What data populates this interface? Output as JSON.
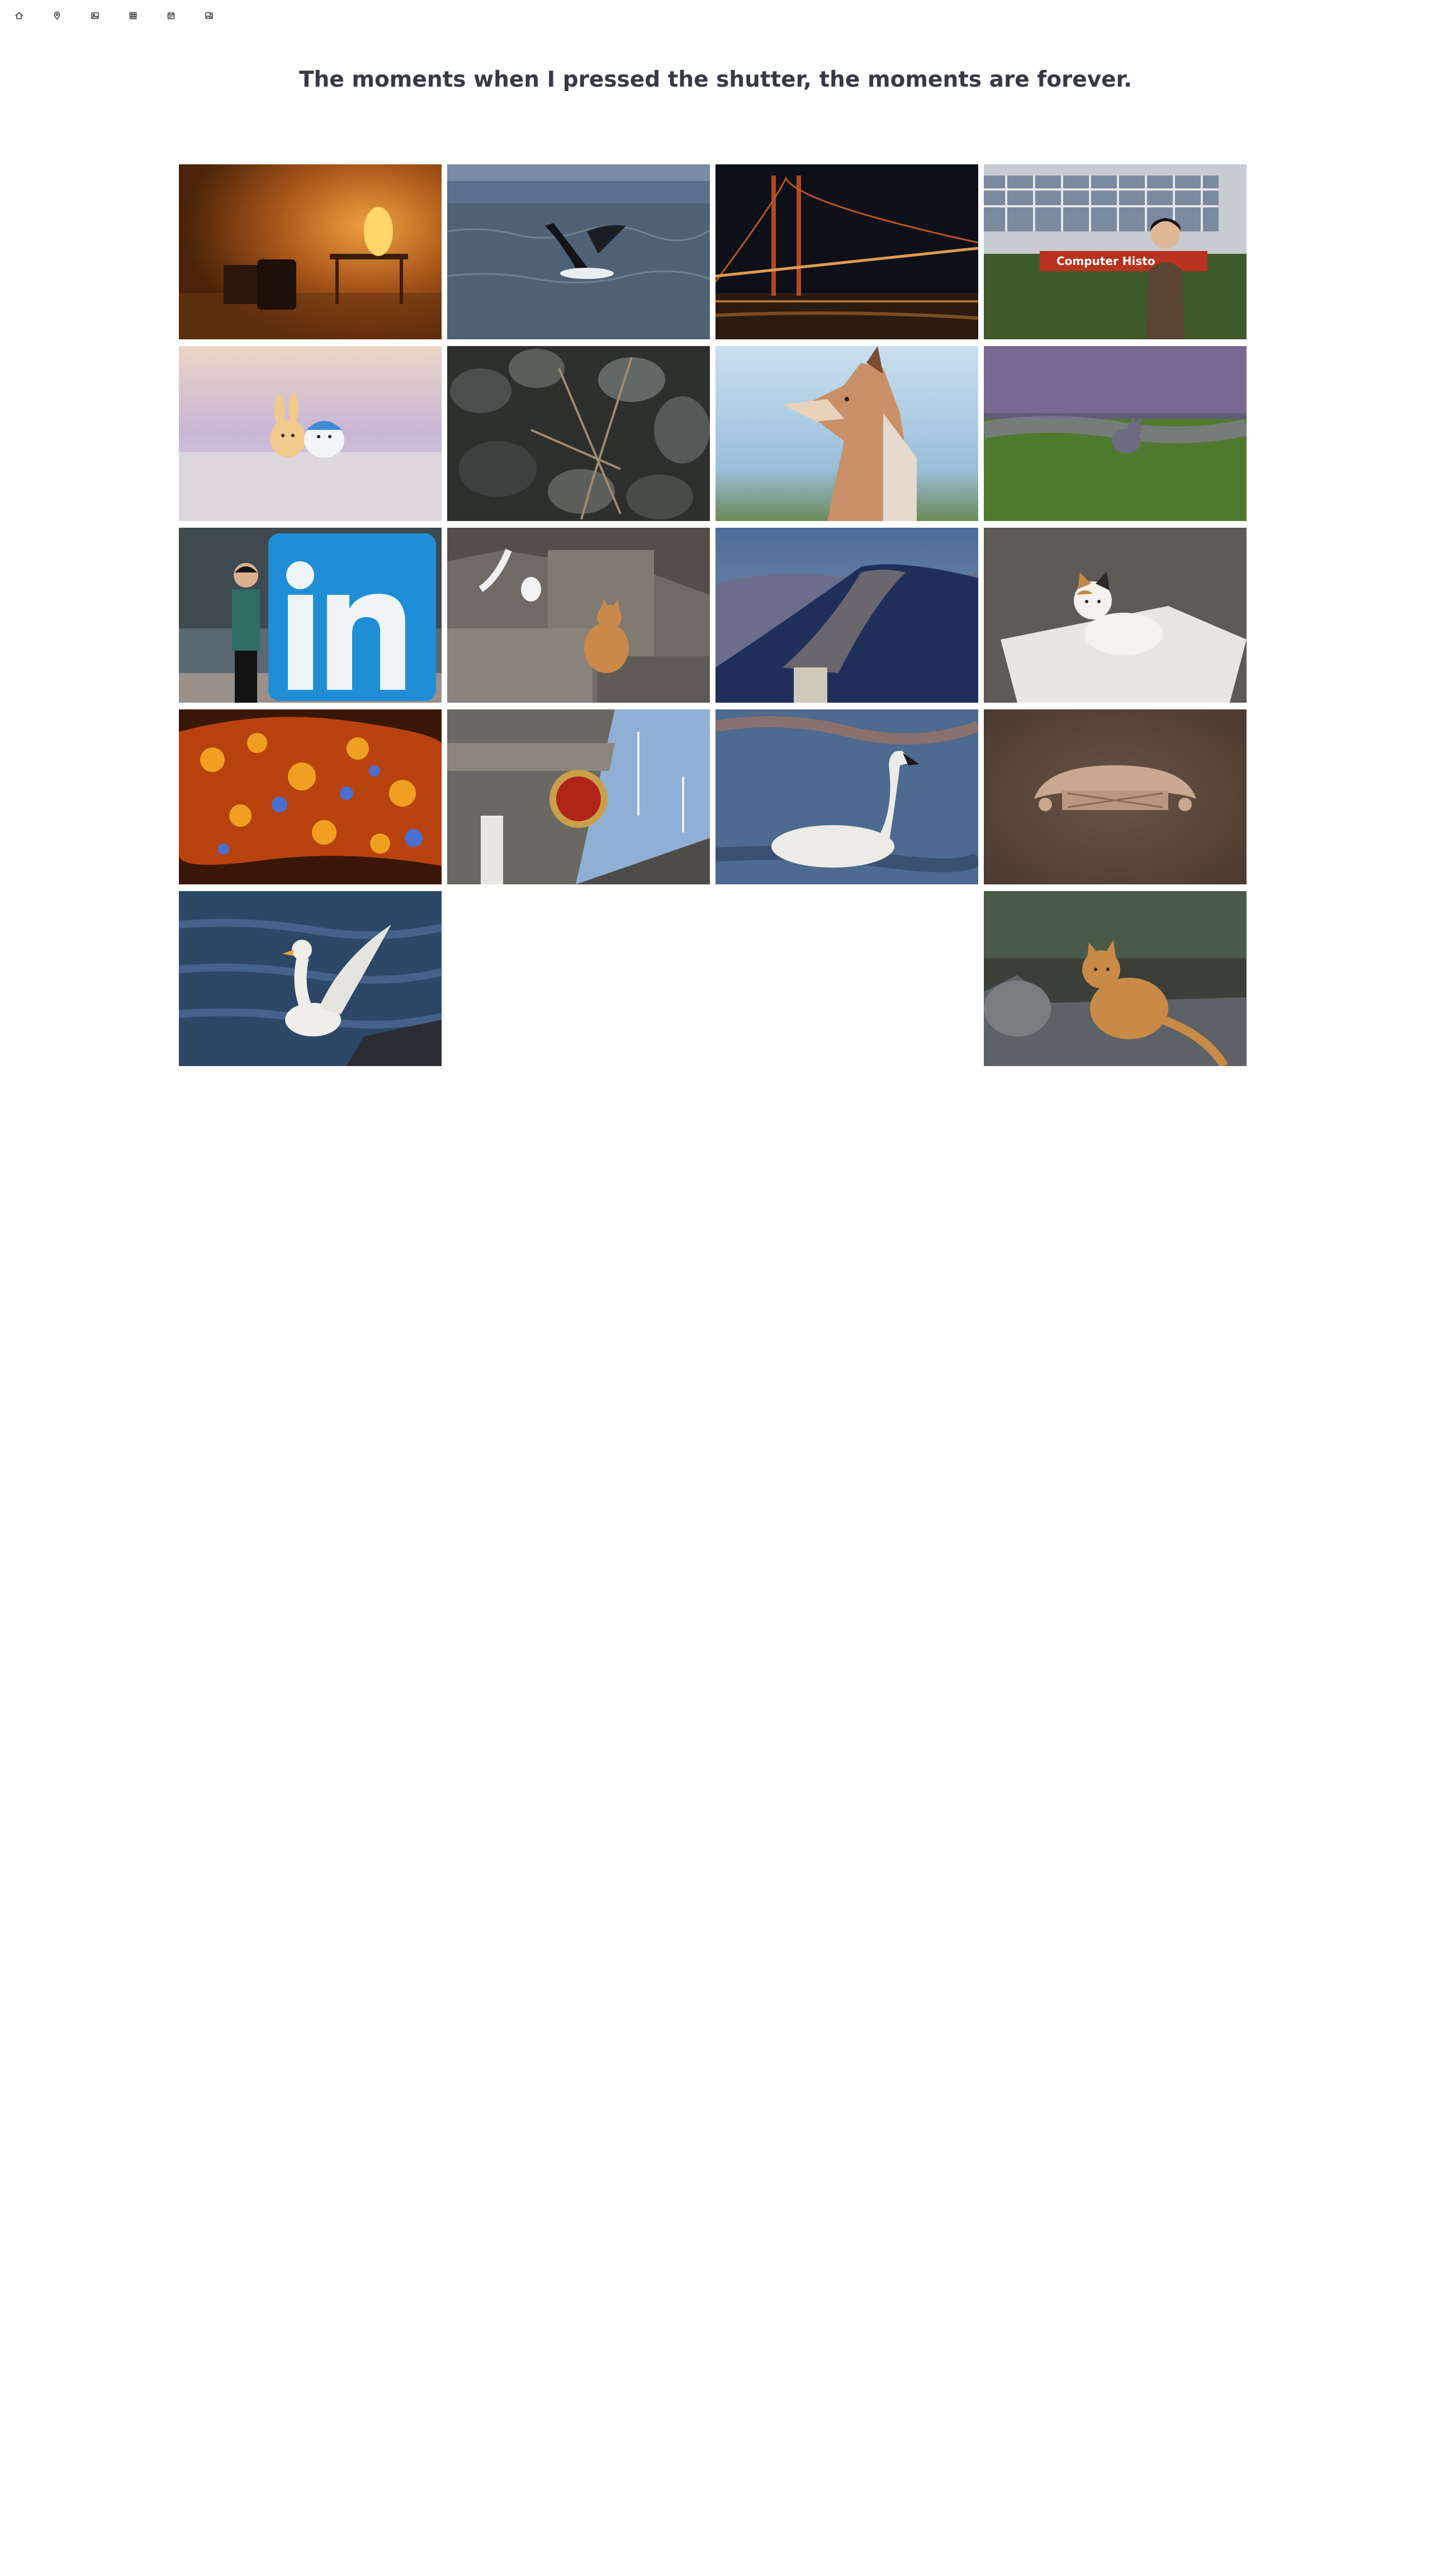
{
  "nav": {
    "items": [
      {
        "name": "home-icon",
        "label": "Home"
      },
      {
        "name": "location-icon",
        "label": "Places"
      },
      {
        "name": "image-icon",
        "label": "Photos"
      },
      {
        "name": "grid-icon",
        "label": "Gallery"
      },
      {
        "name": "calendar-icon",
        "label": "Timeline"
      },
      {
        "name": "picture-icon",
        "label": "Album"
      }
    ]
  },
  "header": {
    "title": "The moments when I pressed the shutter, the moments are forever."
  },
  "gallery": {
    "photos": [
      {
        "name": "photo-lamp-room",
        "alt": "lamp room",
        "sign_text": ""
      },
      {
        "name": "photo-whale-breach",
        "alt": "whale breaching",
        "sign_text": ""
      },
      {
        "name": "photo-golden-gate-night",
        "alt": "bridge at night",
        "sign_text": ""
      },
      {
        "name": "photo-computer-history-museum",
        "alt": "museum portrait",
        "sign_text": "Computer  Histo"
      },
      {
        "name": "photo-plush-toys",
        "alt": "plush toys",
        "sign_text": ""
      },
      {
        "name": "photo-rocks-branches",
        "alt": "rocks",
        "sign_text": ""
      },
      {
        "name": "photo-fox",
        "alt": "fox",
        "sign_text": ""
      },
      {
        "name": "photo-cat-in-grass",
        "alt": "cat in grass",
        "sign_text": ""
      },
      {
        "name": "photo-linkedin-sign",
        "alt": "linkedin sign",
        "sign_text": ""
      },
      {
        "name": "photo-cat-on-stone",
        "alt": "cat on stone",
        "sign_text": ""
      },
      {
        "name": "photo-mountain-landscape",
        "alt": "mountain",
        "sign_text": ""
      },
      {
        "name": "photo-calico-kitten",
        "alt": "kitten",
        "sign_text": ""
      },
      {
        "name": "photo-painted-ceiling",
        "alt": "painted ceiling",
        "sign_text": ""
      },
      {
        "name": "photo-national-emblem",
        "alt": "emblem on building",
        "sign_text": ""
      },
      {
        "name": "photo-swan",
        "alt": "swan",
        "sign_text": ""
      },
      {
        "name": "photo-ornament",
        "alt": "ornament",
        "sign_text": ""
      },
      {
        "name": "photo-white-duck",
        "alt": "duck spreading wings",
        "sign_text": ""
      },
      {
        "name": "photo-orange-cat",
        "alt": "orange cat",
        "sign_text": ""
      }
    ]
  }
}
